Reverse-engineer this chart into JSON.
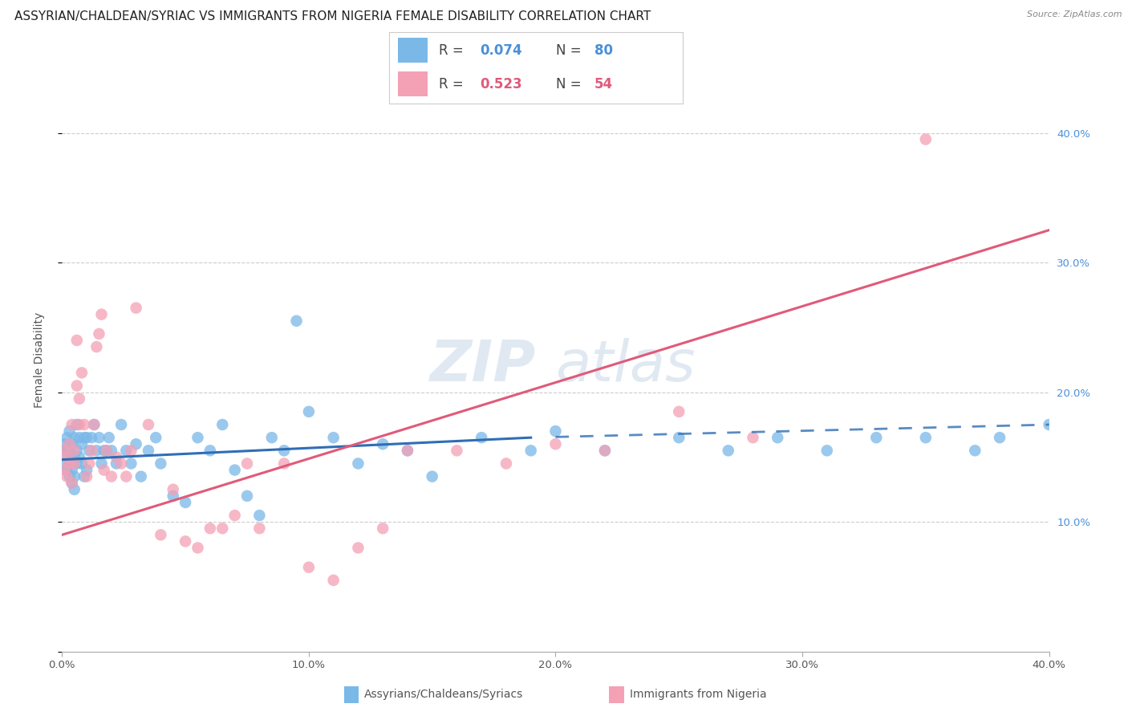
{
  "title": "ASSYRIAN/CHALDEAN/SYRIAC VS IMMIGRANTS FROM NIGERIA FEMALE DISABILITY CORRELATION CHART",
  "source": "Source: ZipAtlas.com",
  "ylabel": "Female Disability",
  "xlim": [
    0.0,
    0.4
  ],
  "ylim": [
    0.0,
    0.45
  ],
  "x_ticks": [
    0.0,
    0.1,
    0.2,
    0.3,
    0.4
  ],
  "x_tick_labels": [
    "0.0%",
    "10.0%",
    "20.0%",
    "30.0%",
    "40.0%"
  ],
  "y_ticks": [
    0.0,
    0.1,
    0.2,
    0.3,
    0.4
  ],
  "y_tick_labels_right": [
    "",
    "10.0%",
    "20.0%",
    "30.0%",
    "40.0%"
  ],
  "blue_color": "#7ab8e8",
  "pink_color": "#f4a0b5",
  "blue_line_color": "#2f6eb5",
  "pink_line_color": "#e05a7a",
  "blue_R": 0.074,
  "blue_N": 80,
  "pink_R": 0.523,
  "pink_N": 54,
  "legend_label1": "Assyrians/Chaldeans/Syriacs",
  "legend_label2": "Immigrants from Nigeria",
  "watermark_zip": "ZIP",
  "watermark_atlas": "atlas",
  "background_color": "#ffffff",
  "grid_color": "#cccccc",
  "title_fontsize": 11,
  "axis_label_fontsize": 10,
  "tick_fontsize": 9.5,
  "legend_fontsize": 12,
  "blue_line_solid_end": 0.19,
  "blue_line_dashed_start": 0.2,
  "pink_line_y_at_0": 0.09,
  "pink_line_y_at_40": 0.325,
  "blue_line_y_at_0": 0.148,
  "blue_line_y_at_19": 0.165,
  "blue_line_y_at_40": 0.175,
  "blue_scatter_x": [
    0.001,
    0.001,
    0.001,
    0.002,
    0.002,
    0.002,
    0.002,
    0.003,
    0.003,
    0.003,
    0.003,
    0.003,
    0.004,
    0.004,
    0.004,
    0.004,
    0.005,
    0.005,
    0.005,
    0.005,
    0.006,
    0.006,
    0.006,
    0.007,
    0.007,
    0.008,
    0.008,
    0.009,
    0.009,
    0.01,
    0.01,
    0.011,
    0.012,
    0.013,
    0.014,
    0.015,
    0.016,
    0.017,
    0.018,
    0.019,
    0.02,
    0.022,
    0.024,
    0.026,
    0.028,
    0.03,
    0.032,
    0.035,
    0.038,
    0.04,
    0.045,
    0.05,
    0.055,
    0.06,
    0.065,
    0.07,
    0.075,
    0.08,
    0.085,
    0.09,
    0.095,
    0.1,
    0.11,
    0.12,
    0.13,
    0.14,
    0.15,
    0.17,
    0.19,
    0.2,
    0.22,
    0.25,
    0.27,
    0.29,
    0.31,
    0.33,
    0.35,
    0.37,
    0.38,
    0.4
  ],
  "blue_scatter_y": [
    0.145,
    0.155,
    0.16,
    0.14,
    0.15,
    0.155,
    0.165,
    0.135,
    0.145,
    0.155,
    0.16,
    0.17,
    0.13,
    0.14,
    0.15,
    0.16,
    0.125,
    0.135,
    0.15,
    0.165,
    0.145,
    0.155,
    0.175,
    0.15,
    0.165,
    0.145,
    0.16,
    0.135,
    0.165,
    0.14,
    0.165,
    0.155,
    0.165,
    0.175,
    0.155,
    0.165,
    0.145,
    0.155,
    0.155,
    0.165,
    0.155,
    0.145,
    0.175,
    0.155,
    0.145,
    0.16,
    0.135,
    0.155,
    0.165,
    0.145,
    0.12,
    0.115,
    0.165,
    0.155,
    0.175,
    0.14,
    0.12,
    0.105,
    0.165,
    0.155,
    0.255,
    0.185,
    0.165,
    0.145,
    0.16,
    0.155,
    0.135,
    0.165,
    0.155,
    0.17,
    0.155,
    0.165,
    0.155,
    0.165,
    0.155,
    0.165,
    0.165,
    0.155,
    0.165,
    0.175
  ],
  "pink_scatter_x": [
    0.001,
    0.001,
    0.002,
    0.002,
    0.003,
    0.003,
    0.004,
    0.004,
    0.005,
    0.005,
    0.006,
    0.006,
    0.007,
    0.007,
    0.008,
    0.009,
    0.01,
    0.011,
    0.012,
    0.013,
    0.014,
    0.015,
    0.016,
    0.017,
    0.018,
    0.02,
    0.022,
    0.024,
    0.026,
    0.028,
    0.03,
    0.035,
    0.04,
    0.045,
    0.05,
    0.055,
    0.06,
    0.065,
    0.07,
    0.075,
    0.08,
    0.09,
    0.1,
    0.11,
    0.12,
    0.13,
    0.14,
    0.16,
    0.18,
    0.2,
    0.22,
    0.25,
    0.28,
    0.35
  ],
  "pink_scatter_y": [
    0.14,
    0.155,
    0.135,
    0.15,
    0.145,
    0.16,
    0.175,
    0.13,
    0.145,
    0.155,
    0.205,
    0.24,
    0.175,
    0.195,
    0.215,
    0.175,
    0.135,
    0.145,
    0.155,
    0.175,
    0.235,
    0.245,
    0.26,
    0.14,
    0.155,
    0.135,
    0.15,
    0.145,
    0.135,
    0.155,
    0.265,
    0.175,
    0.09,
    0.125,
    0.085,
    0.08,
    0.095,
    0.095,
    0.105,
    0.145,
    0.095,
    0.145,
    0.065,
    0.055,
    0.08,
    0.095,
    0.155,
    0.155,
    0.145,
    0.16,
    0.155,
    0.185,
    0.165,
    0.395
  ]
}
